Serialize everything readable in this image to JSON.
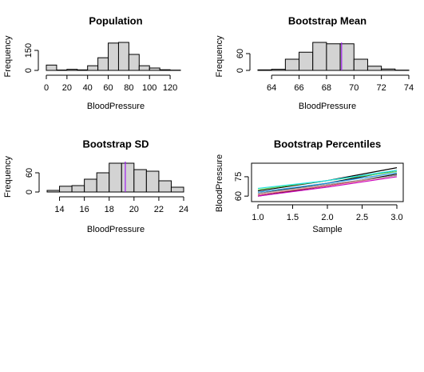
{
  "chart_data": [
    {
      "type": "histogram",
      "title": "Population",
      "xlabel": "BloodPressure",
      "ylabel": "Frequency",
      "bins": [
        0,
        10,
        20,
        30,
        40,
        50,
        60,
        70,
        80,
        90,
        100,
        110,
        120,
        130
      ],
      "counts": [
        40,
        3,
        8,
        4,
        35,
        95,
        205,
        210,
        120,
        35,
        18,
        5,
        2
      ],
      "color": "#d3d3d3",
      "xlim": [
        0,
        130
      ],
      "xticks": [
        0,
        20,
        40,
        60,
        80,
        100,
        120
      ],
      "ylim": [
        0,
        210
      ],
      "yticks": [
        0,
        150
      ]
    },
    {
      "type": "histogram",
      "title": "Bootstrap Mean",
      "xlabel": "BloodPressure",
      "ylabel": "Frequency",
      "bins": [
        63,
        64,
        65,
        66,
        67,
        68,
        69,
        70,
        71,
        72,
        73,
        74
      ],
      "counts": [
        2,
        4,
        40,
        65,
        100,
        95,
        95,
        40,
        15,
        5,
        1
      ],
      "color": "#d3d3d3",
      "xlim": [
        63,
        74
      ],
      "xticks": [
        64,
        66,
        68,
        70,
        72,
        74
      ],
      "ylim": [
        0,
        100
      ],
      "yticks": [
        0,
        60
      ],
      "vline": {
        "value": 69.1,
        "color": "#a020f0"
      }
    },
    {
      "type": "histogram",
      "title": "Bootstrap SD",
      "xlabel": "BloodPressure",
      "ylabel": "Frequency",
      "bins": [
        13,
        14,
        15,
        16,
        17,
        18,
        19,
        20,
        21,
        22,
        23,
        24
      ],
      "counts": [
        5,
        18,
        20,
        40,
        60,
        90,
        90,
        70,
        65,
        35,
        15
      ],
      "color": "#d3d3d3",
      "xlim": [
        13,
        24
      ],
      "xticks": [
        14,
        16,
        18,
        20,
        22,
        24
      ],
      "ylim": [
        0,
        95
      ],
      "yticks": [
        0,
        60
      ],
      "vline": {
        "value": 19.3,
        "color": "#a020f0"
      }
    },
    {
      "type": "line",
      "title": "Bootstrap Percentiles",
      "xlabel": "Sample",
      "ylabel": "BloodPressure",
      "x": [
        1,
        2,
        3
      ],
      "series": [
        {
          "color": "#000000",
          "values": [
            62,
            70,
            80
          ]
        },
        {
          "color": "#000000",
          "values": [
            64,
            72,
            82
          ]
        },
        {
          "color": "#000000",
          "values": [
            60,
            68,
            77
          ]
        },
        {
          "color": "#df536b",
          "values": [
            61,
            68,
            76
          ]
        },
        {
          "color": "#61d04f",
          "values": [
            65,
            72,
            79
          ]
        },
        {
          "color": "#2297e6",
          "values": [
            63,
            70,
            78
          ]
        },
        {
          "color": "#28e2e5",
          "values": [
            66,
            72,
            80
          ]
        },
        {
          "color": "#cd0bbc",
          "values": [
            60,
            67,
            75
          ]
        },
        {
          "color": "#9e9e9e",
          "values": [
            62,
            69,
            76
          ]
        }
      ],
      "xlim": [
        1,
        3
      ],
      "xticks": [
        {
          "value": 1,
          "label": "1.0"
        },
        1.5,
        {
          "value": 2,
          "label": "2.0"
        },
        2.5,
        {
          "value": 3,
          "label": "3.0"
        }
      ],
      "ylim": [
        57,
        83
      ],
      "yticks": [
        60,
        75
      ]
    }
  ]
}
